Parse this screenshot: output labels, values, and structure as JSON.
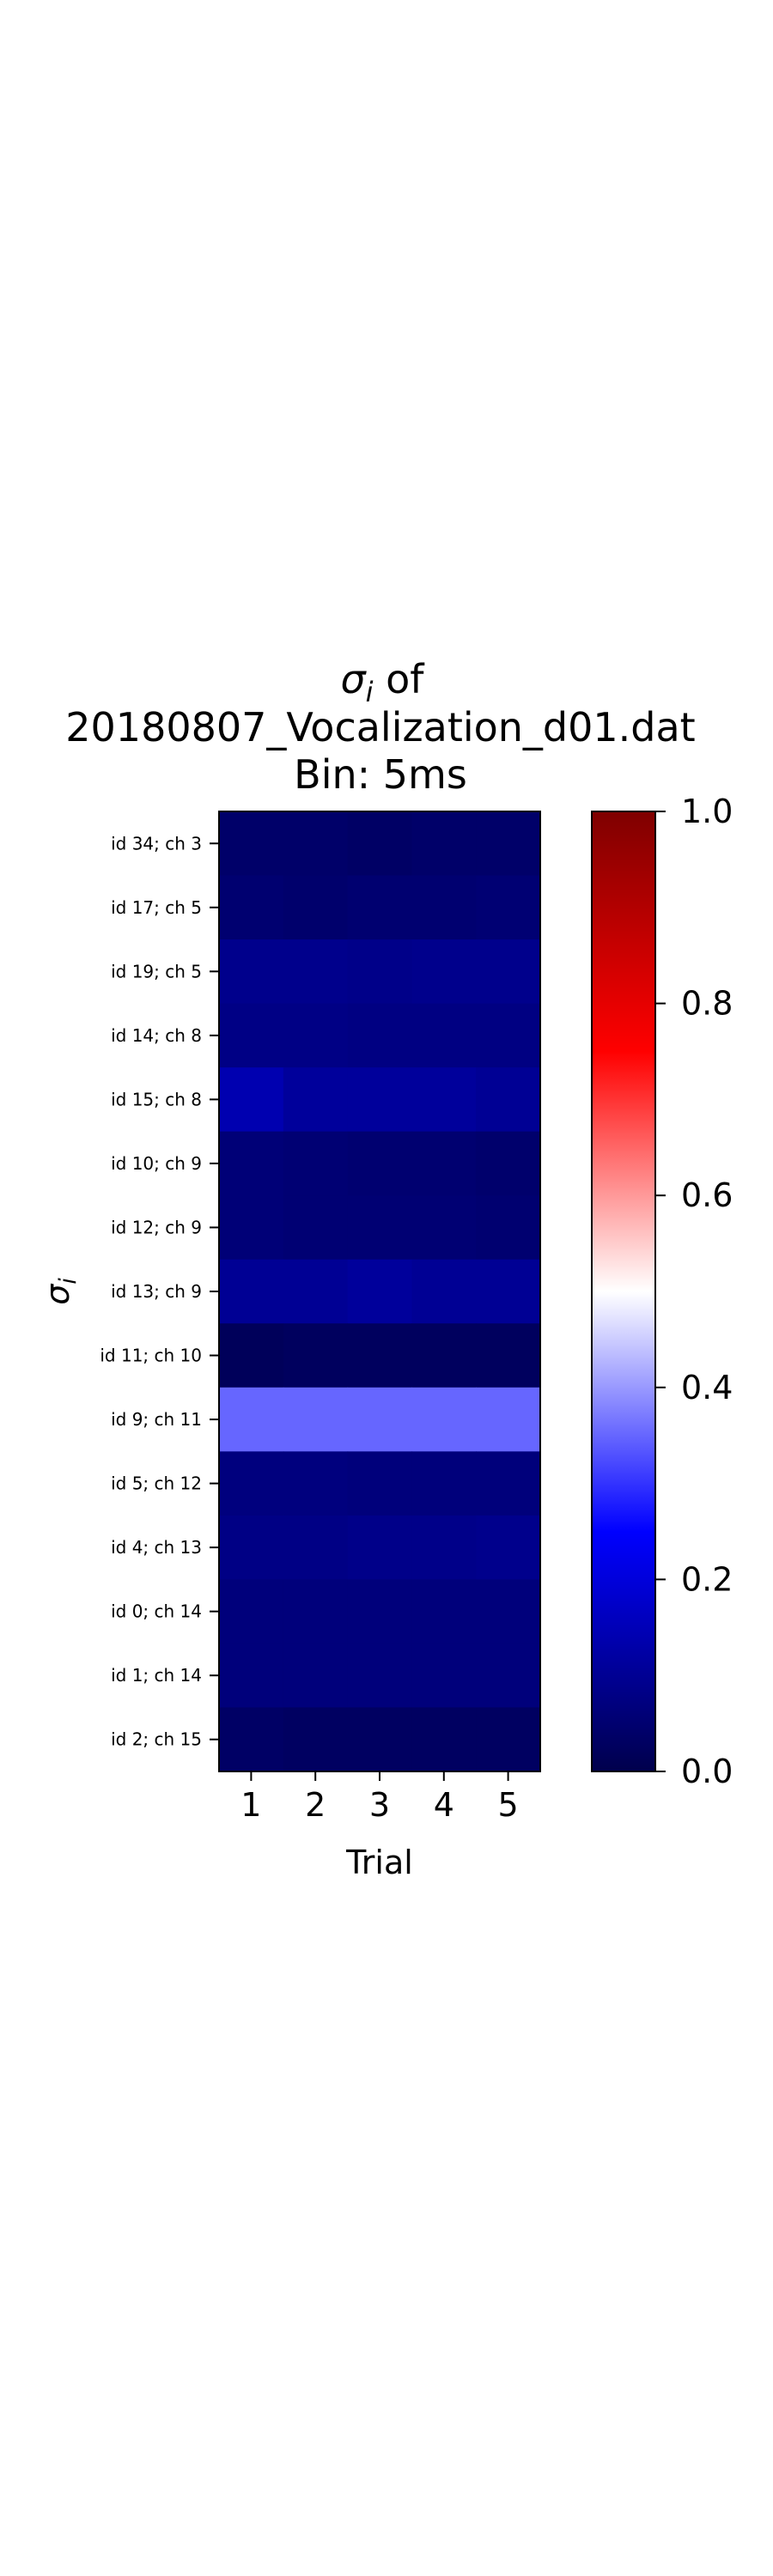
{
  "chart_data": {
    "type": "heatmap",
    "title_sigma": "σ",
    "title_sigma_sub": "i",
    "title_of": " of",
    "title_line2": "20180807_Vocalization_d01.dat",
    "title_line3": "Bin: 5ms",
    "xlabel": "Trial",
    "ylabel_sigma": "σ",
    "ylabel_sub": "i",
    "x": [
      "1",
      "2",
      "3",
      "4",
      "5"
    ],
    "y": [
      "id 34; ch 3",
      "id 17; ch 5",
      "id 19; ch 5",
      "id 14; ch 8",
      "id 15; ch 8",
      "id 10; ch 9",
      "id 12; ch 9",
      "id 13; ch 9",
      "id 11; ch 10",
      "id 9; ch 11",
      "id 5; ch 12",
      "id 4; ch 13",
      "id 0; ch 14",
      "id 1; ch 14",
      "id 2; ch 15"
    ],
    "values": [
      [
        0.04,
        0.04,
        0.035,
        0.04,
        0.04
      ],
      [
        0.05,
        0.045,
        0.05,
        0.05,
        0.055
      ],
      [
        0.09,
        0.09,
        0.085,
        0.09,
        0.09
      ],
      [
        0.08,
        0.08,
        0.075,
        0.075,
        0.075
      ],
      [
        0.14,
        0.11,
        0.11,
        0.11,
        0.1
      ],
      [
        0.06,
        0.055,
        0.05,
        0.05,
        0.045
      ],
      [
        0.06,
        0.055,
        0.055,
        0.055,
        0.05
      ],
      [
        0.1,
        0.1,
        0.11,
        0.1,
        0.1
      ],
      [
        0.02,
        0.025,
        0.025,
        0.025,
        0.025
      ],
      [
        0.35,
        0.35,
        0.35,
        0.35,
        0.35
      ],
      [
        0.07,
        0.07,
        0.065,
        0.065,
        0.065
      ],
      [
        0.08,
        0.08,
        0.085,
        0.085,
        0.09
      ],
      [
        0.065,
        0.065,
        0.065,
        0.065,
        0.065
      ],
      [
        0.065,
        0.065,
        0.065,
        0.065,
        0.065
      ],
      [
        0.035,
        0.03,
        0.03,
        0.03,
        0.03
      ]
    ],
    "colorbar": {
      "range": [
        0.0,
        1.0
      ],
      "ticks": [
        "0.0",
        "0.2",
        "0.4",
        "0.6",
        "0.8",
        "1.0"
      ],
      "colormap": "seismic",
      "colors": {
        "low": "#00004c",
        "mid_low": "#0000ff",
        "mid": "#ffffff",
        "mid_high": "#ff0000",
        "high": "#7f0000"
      }
    }
  }
}
